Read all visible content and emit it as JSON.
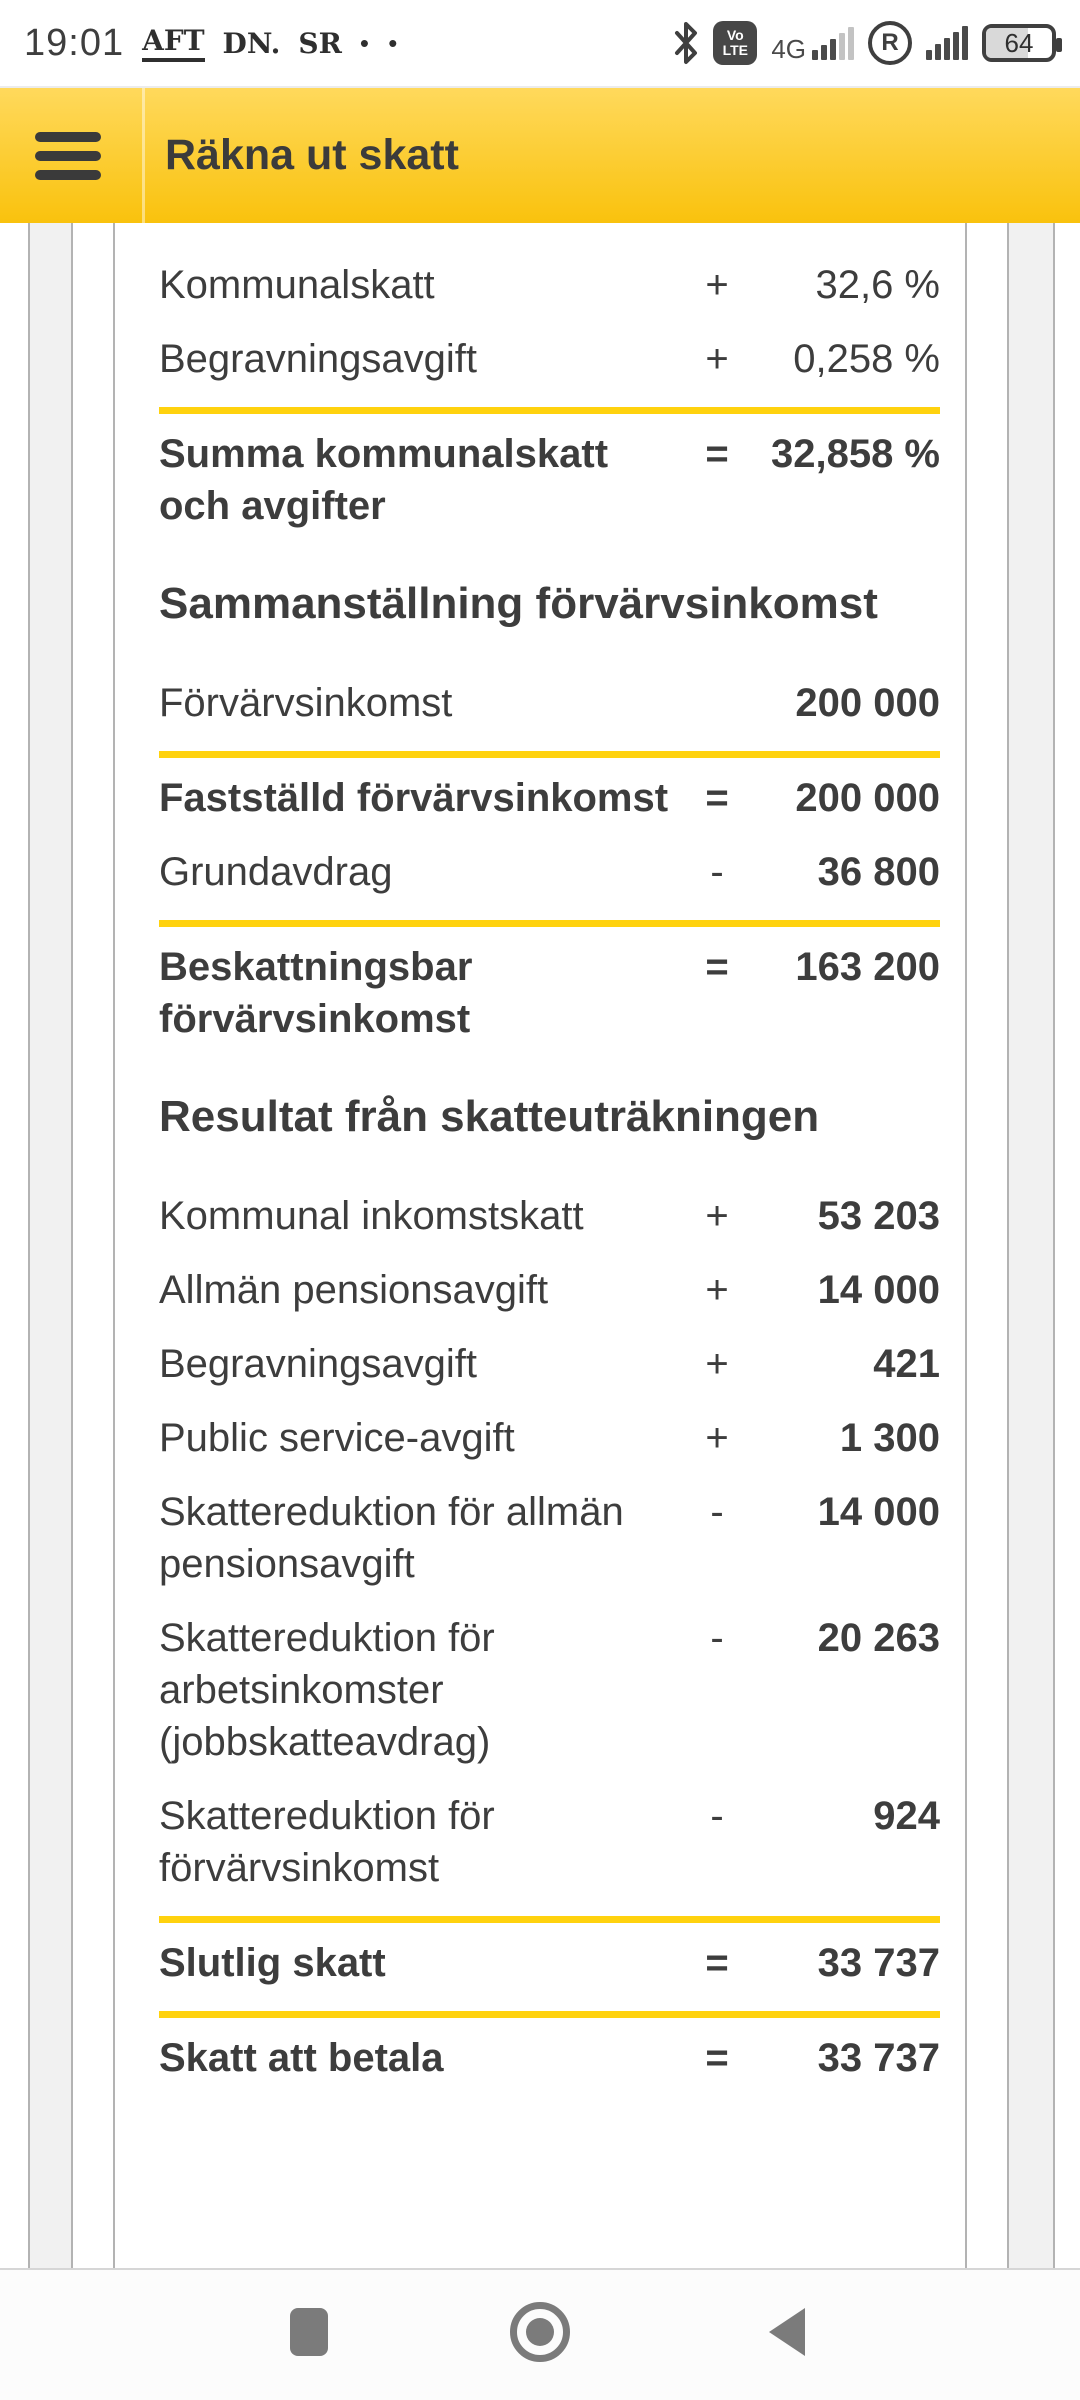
{
  "statusbar": {
    "time": "19:01",
    "notification_icons": [
      "AFT",
      "DN.",
      "SR"
    ],
    "more_dots": "• •",
    "volte_line1": "Vo",
    "volte_line2": "LTE",
    "network_type": "4G",
    "roaming_letter": "R",
    "battery_percent": "64"
  },
  "appbar": {
    "title": "Räkna ut skatt",
    "menu_icon": "hamburger-icon"
  },
  "colors": {
    "appbar_gradient_top": "#ffd95c",
    "appbar_gradient_bottom": "#f9c20d",
    "divider_yellow": "#ffd20e",
    "text": "#3d3d3d",
    "table_border": "#b3b3b3"
  },
  "table": {
    "sections": [
      {
        "heading": null,
        "rows": [
          {
            "label": "Kommunalskatt",
            "op": "+",
            "value": "32,6 %",
            "total": false
          },
          {
            "label": "Begravningsavgift",
            "op": "+",
            "value": "0,258 %",
            "total": false
          },
          {
            "label": "Summa kommunalskatt\noch avgifter",
            "op": "=",
            "value": "32,858 %",
            "total": true
          }
        ]
      },
      {
        "heading": "Sammanställning förvärvsinkomst",
        "rows": [
          {
            "label": "Förvärvsinkomst",
            "op": "",
            "value": "200 000",
            "total": false
          },
          {
            "label": "Fastställd förvärvsinkomst",
            "op": "=",
            "value": "200 000",
            "total": true
          },
          {
            "label": "Grundavdrag",
            "op": "-",
            "value": "36 800",
            "total": false
          },
          {
            "label": "Beskattningsbar\nförvärvsinkomst",
            "op": "=",
            "value": "163 200",
            "total": true
          }
        ]
      },
      {
        "heading": "Resultat från skatteuträkningen",
        "rows": [
          {
            "label": "Kommunal inkomstskatt",
            "op": "+",
            "value": "53 203",
            "total": false
          },
          {
            "label": "Allmän pensionsavgift",
            "op": "+",
            "value": "14 000",
            "total": false
          },
          {
            "label": "Begravningsavgift",
            "op": "+",
            "value": "421",
            "total": false
          },
          {
            "label": "Public service-avgift",
            "op": "+",
            "value": "1 300",
            "total": false
          },
          {
            "label": "Skattereduktion för allmän\npensionsavgift",
            "op": "-",
            "value": "14 000",
            "total": false
          },
          {
            "label": "Skattereduktion för\narbetsinkomster\n(jobbskatteavdrag)",
            "op": "-",
            "value": "20 263",
            "total": false
          },
          {
            "label": "Skattereduktion för\nförvärvsinkomst",
            "op": "-",
            "value": "924",
            "total": false
          },
          {
            "label": "Slutlig skatt",
            "op": "=",
            "value": "33 737",
            "total": true
          },
          {
            "label": "Skatt att betala",
            "op": "=",
            "value": "33 737",
            "total": true
          }
        ]
      }
    ]
  }
}
